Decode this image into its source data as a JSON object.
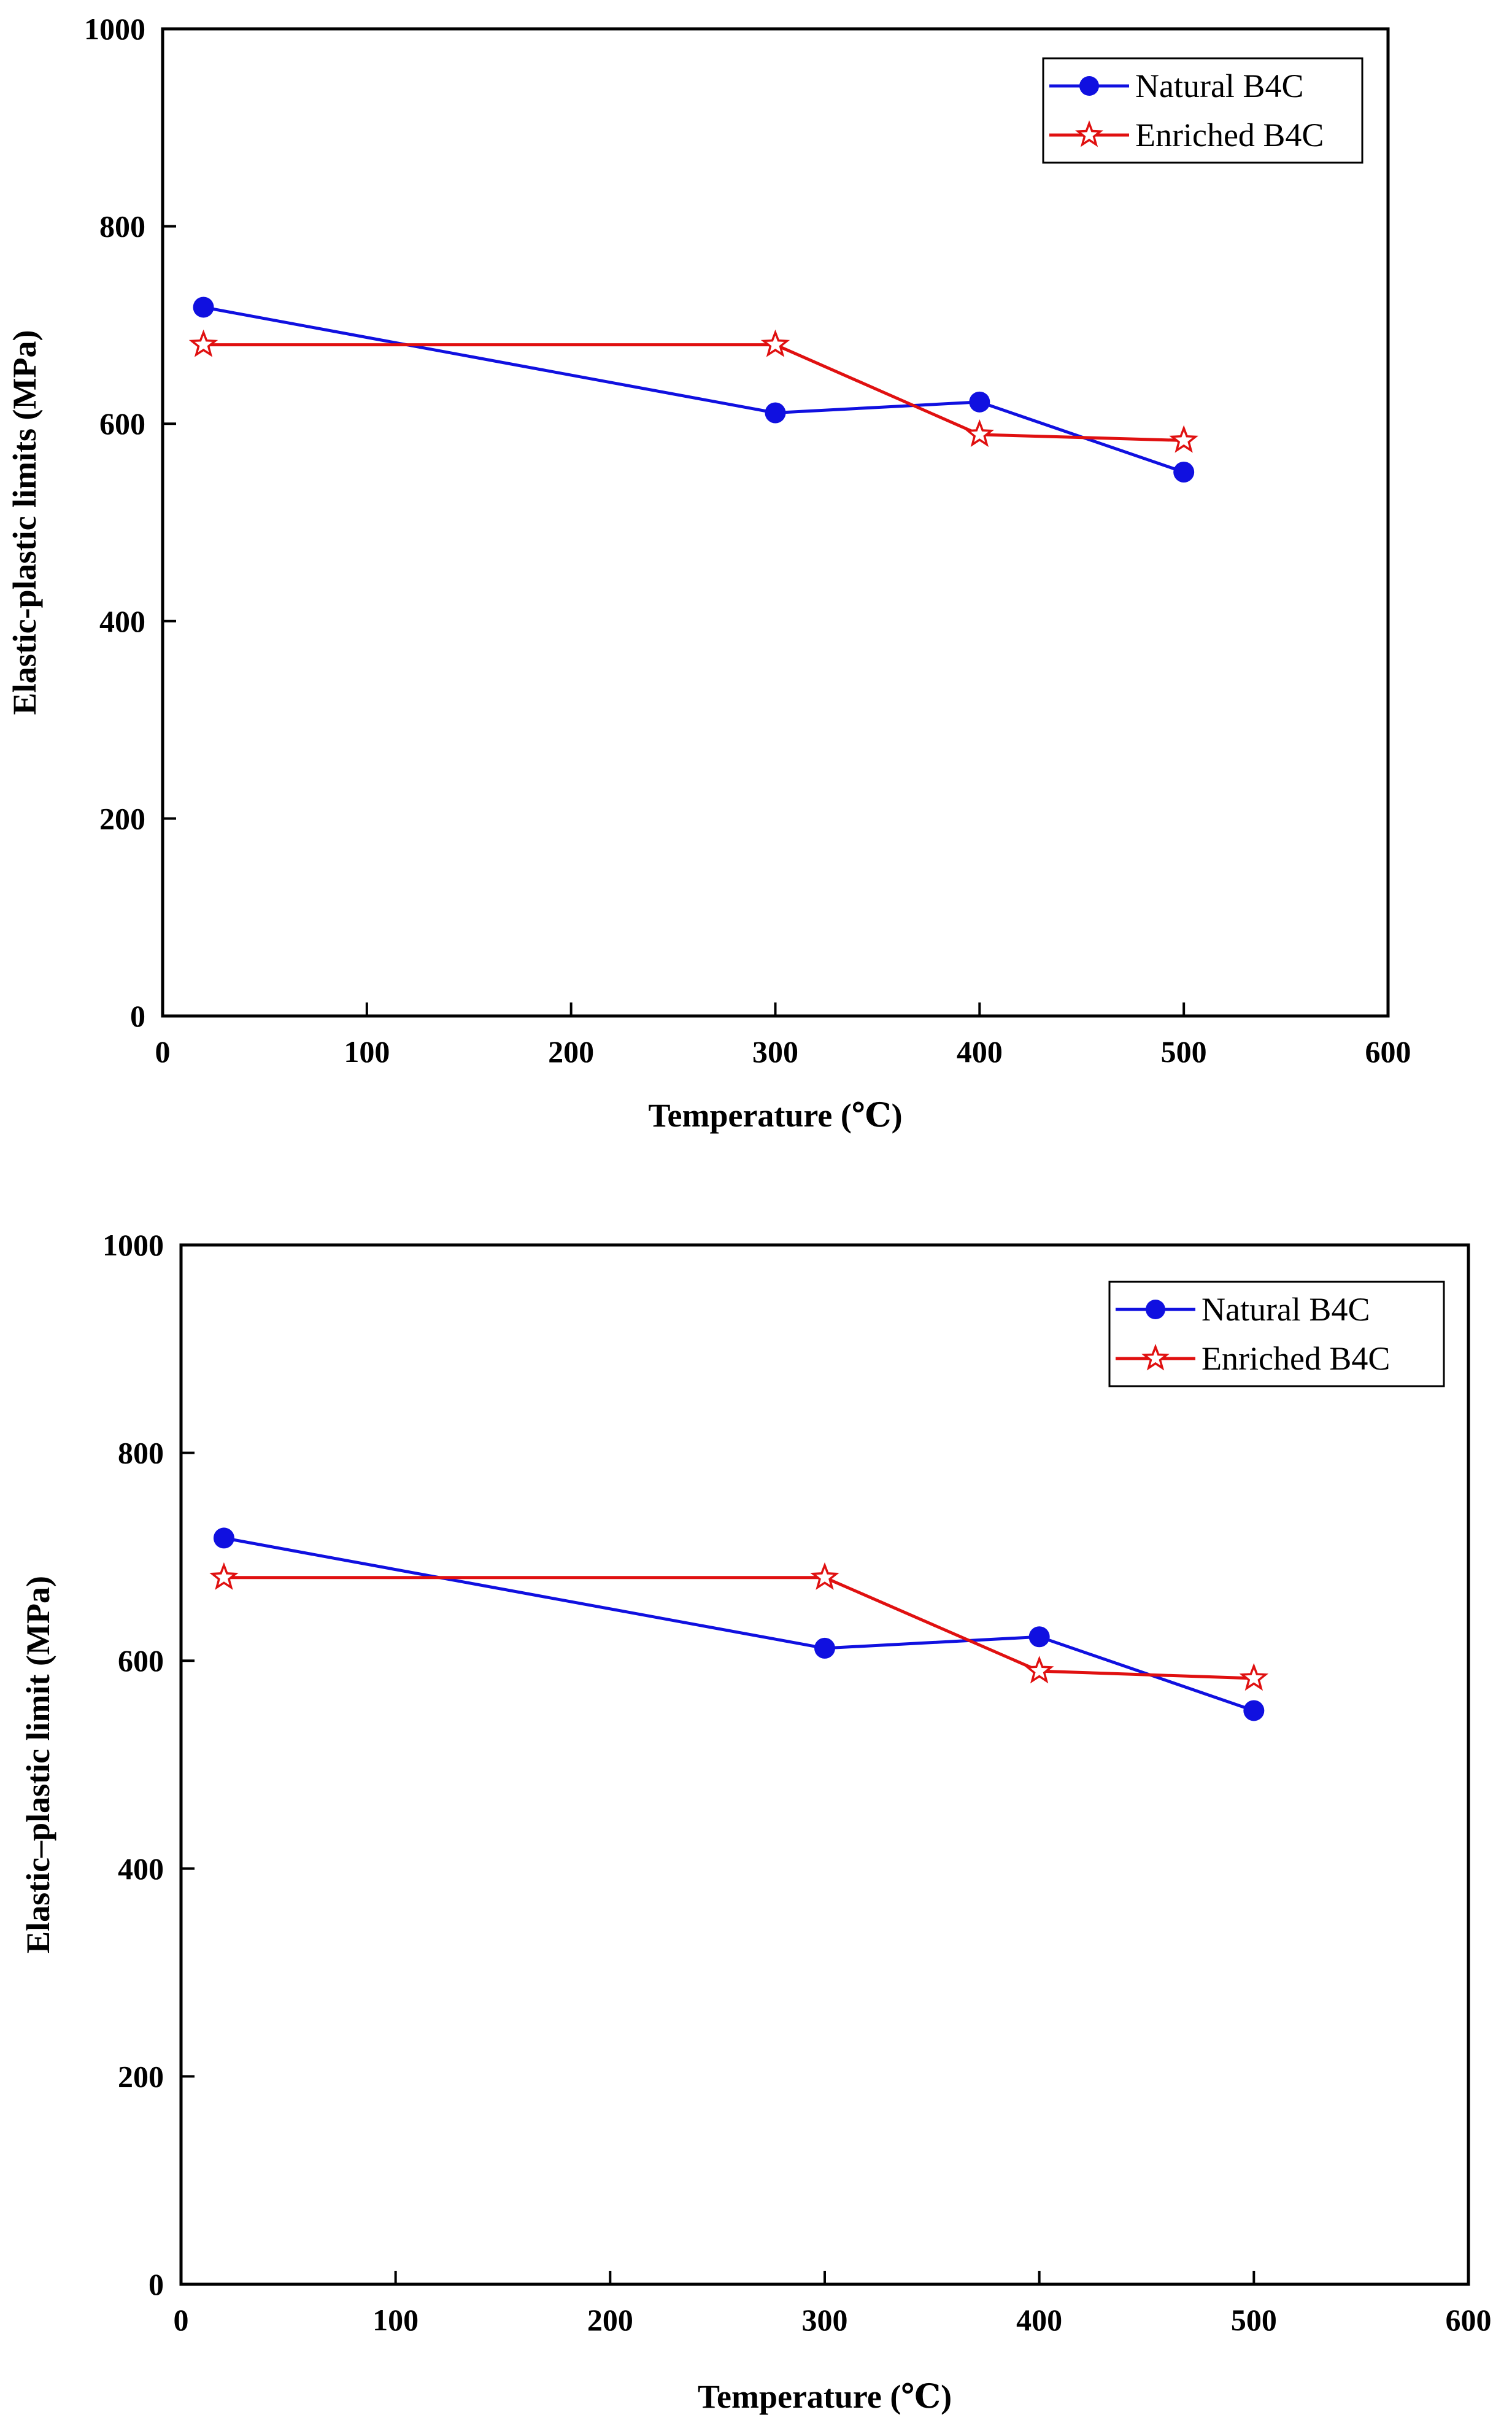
{
  "colors": {
    "natural": "#1010e0",
    "enriched": "#e01010"
  },
  "chart_data": [
    {
      "type": "line",
      "xlabel": "Temperature (℃)",
      "ylabel": "Elastic-plastic limits (MPa)",
      "xlim": [
        0,
        600
      ],
      "ylim": [
        0,
        1000
      ],
      "xticks": [
        0,
        100,
        200,
        300,
        400,
        500,
        600
      ],
      "yticks": [
        0,
        200,
        400,
        600,
        800,
        1000
      ],
      "grid": false,
      "legend_position": "top-right",
      "series": [
        {
          "name": "Natural B4C",
          "marker": "circle",
          "x": [
            20,
            300,
            400,
            500
          ],
          "y": [
            718,
            611,
            622,
            551
          ]
        },
        {
          "name": "Enriched B4C",
          "marker": "star",
          "x": [
            20,
            300,
            400,
            500
          ],
          "y": [
            680,
            680,
            589,
            583
          ]
        }
      ]
    },
    {
      "type": "line",
      "xlabel": "Temperature (℃)",
      "ylabel": "Elastic–plastic limit (MPa)",
      "xlim": [
        0,
        600
      ],
      "ylim": [
        0,
        1000
      ],
      "xticks": [
        0,
        100,
        200,
        300,
        400,
        500,
        600
      ],
      "yticks": [
        0,
        200,
        400,
        600,
        800,
        1000
      ],
      "grid": false,
      "legend_position": "top-right",
      "series": [
        {
          "name": "Natural B4C",
          "marker": "circle",
          "x": [
            20,
            300,
            400,
            500
          ],
          "y": [
            718,
            612,
            623,
            552
          ]
        },
        {
          "name": "Enriched B4C",
          "marker": "star",
          "x": [
            20,
            300,
            400,
            500
          ],
          "y": [
            680,
            680,
            590,
            583
          ]
        }
      ]
    }
  ]
}
